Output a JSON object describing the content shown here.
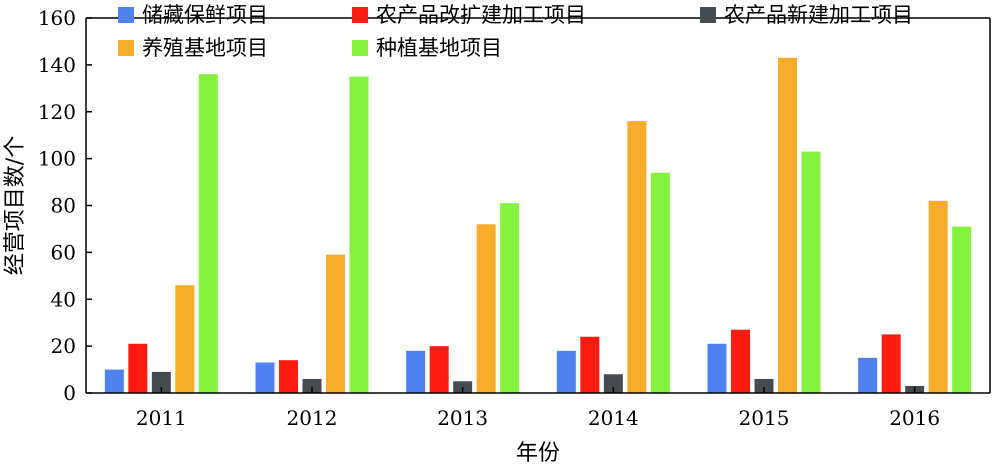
{
  "chart_data": {
    "type": "bar",
    "xlabel": "年份",
    "ylabel": "经营项目数/个",
    "ylim": [
      0,
      160
    ],
    "yticks": [
      0,
      20,
      40,
      60,
      80,
      100,
      120,
      140,
      160
    ],
    "categories": [
      "2011",
      "2012",
      "2013",
      "2014",
      "2015",
      "2016"
    ],
    "legend_position": "top",
    "series": [
      {
        "name": "储藏保鲜项目",
        "color": "#4f81ef",
        "values": [
          10,
          13,
          18,
          18,
          21,
          15
        ]
      },
      {
        "name": "农产品改扩建加工项目",
        "color": "#fe1c11",
        "values": [
          21,
          14,
          20,
          24,
          27,
          25
        ]
      },
      {
        "name": "农产品新建加工项目",
        "color": "#454b4f",
        "values": [
          9,
          6,
          5,
          8,
          6,
          3
        ]
      },
      {
        "name": "养殖基地项目",
        "color": "#f7ac2b",
        "values": [
          46,
          59,
          72,
          116,
          143,
          82
        ]
      },
      {
        "name": "种植基地项目",
        "color": "#85f23f",
        "values": [
          136,
          135,
          81,
          94,
          103,
          71
        ]
      }
    ]
  }
}
